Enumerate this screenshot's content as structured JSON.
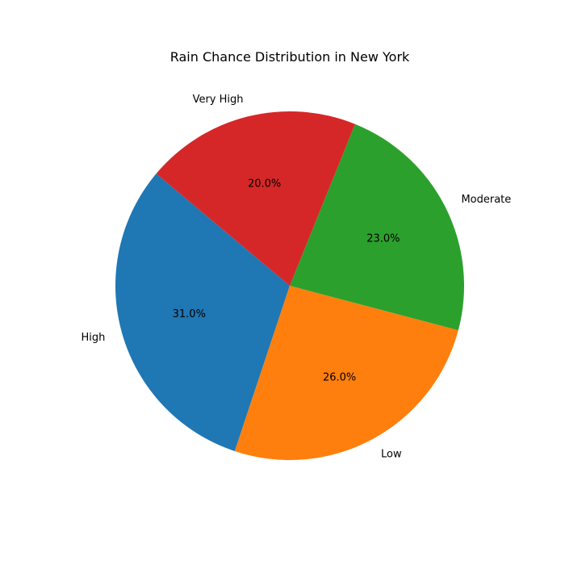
{
  "chart_data": {
    "type": "pie",
    "title": "Rain Chance Distribution in New York",
    "categories": [
      "High",
      "Low",
      "Moderate",
      "Very High"
    ],
    "values": [
      31.0,
      26.0,
      23.0,
      20.0
    ],
    "percent_labels": [
      "31.0%",
      "26.0%",
      "23.0%",
      "20.0%"
    ],
    "colors": [
      "#1f77b4",
      "#ff7f0e",
      "#2ca02c",
      "#d62728"
    ],
    "start_angle_deg": 140,
    "direction": "counterclockwise",
    "legend": "none"
  }
}
